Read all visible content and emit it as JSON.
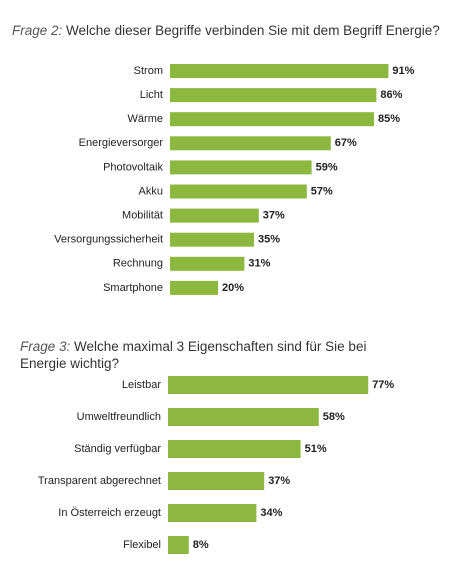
{
  "chart_data": [
    {
      "type": "hbar",
      "title_label": "Frage 2:",
      "title": "Welche dieser Begriffe verbinden Sie mit dem Begriff Energie?",
      "categories": [
        "Strom",
        "Licht",
        "Wärme",
        "Energieversorger",
        "Photovoltaik",
        "Akku",
        "Mobilität",
        "Versorgungssicherheit",
        "Rechnung",
        "Smartphone"
      ],
      "values": [
        91,
        86,
        85,
        67,
        59,
        57,
        37,
        35,
        31,
        20
      ],
      "value_labels": [
        "91%",
        "86%",
        "85%",
        "67%",
        "59%",
        "57%",
        "37%",
        "35%",
        "31%",
        "20%"
      ],
      "color": "#8cb83f",
      "xlim": [
        0,
        100
      ]
    },
    {
      "type": "hbar",
      "title_label": "Frage 3:",
      "title": "Welche maximal 3 Eigenschaften sind für Sie bei Energie wichtig?",
      "categories": [
        "Leistbar",
        "Umweltfreundlich",
        "Ständig verfügbar",
        "Transparent abgerechnet",
        "In Österreich erzeugt",
        "Flexibel"
      ],
      "values": [
        77,
        58,
        51,
        37,
        34,
        8
      ],
      "value_labels": [
        "77%",
        "58%",
        "51%",
        "37%",
        "34%",
        "8%"
      ],
      "color": "#8cb83f",
      "xlim": [
        0,
        100
      ]
    }
  ]
}
